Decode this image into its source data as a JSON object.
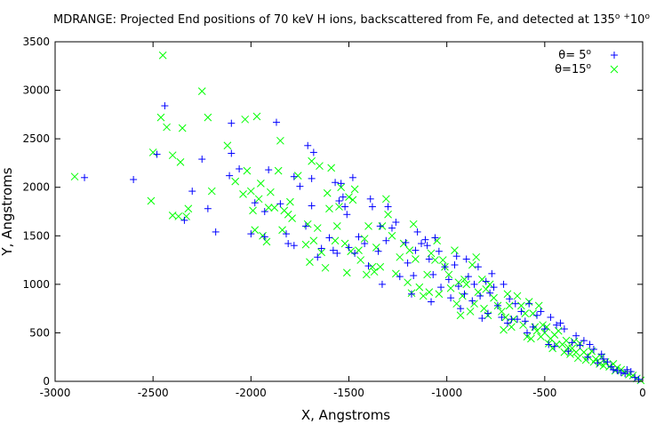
{
  "chart_data": {
    "type": "scatter",
    "title_main": "MDRANGE: Projected End positions of 70 keV H ions, backscattered from Fe, and detected at 135",
    "title_sup1": "o",
    "title_pm": "+",
    "title_10": "10",
    "title_sup2": "o",
    "xlabel": "X, Angstroms",
    "ylabel": "Y, Angstroms",
    "xlim": [
      -3000,
      0
    ],
    "ylim": [
      0,
      3500
    ],
    "xticks": [
      "-3000",
      "-2500",
      "-2000",
      "-1500",
      "-1000",
      "-500",
      "0"
    ],
    "yticks": [
      "0",
      "500",
      "1000",
      "1500",
      "2000",
      "2500",
      "3000",
      "3500"
    ],
    "grid": false,
    "legend_position": "top-right",
    "series": [
      {
        "name": "θ= 5",
        "name_sup": "o",
        "marker": "plus",
        "color": "#0000ff",
        "points": [
          [
            -2850,
            2100
          ],
          [
            -2600,
            2080
          ],
          [
            -2480,
            2340
          ],
          [
            -2440,
            2840
          ],
          [
            -2340,
            1660
          ],
          [
            -2300,
            1960
          ],
          [
            -2250,
            2290
          ],
          [
            -2220,
            1780
          ],
          [
            -2180,
            1540
          ],
          [
            -2110,
            2120
          ],
          [
            -2100,
            2350
          ],
          [
            -2100,
            2660
          ],
          [
            -2060,
            2190
          ],
          [
            -2000,
            1520
          ],
          [
            -1980,
            1840
          ],
          [
            -1930,
            1490
          ],
          [
            -1930,
            1750
          ],
          [
            -1910,
            2180
          ],
          [
            -1870,
            2670
          ],
          [
            -1850,
            1830
          ],
          [
            -1820,
            1520
          ],
          [
            -1810,
            1420
          ],
          [
            -1780,
            1400
          ],
          [
            -1780,
            2110
          ],
          [
            -1750,
            2010
          ],
          [
            -1720,
            1600
          ],
          [
            -1710,
            2430
          ],
          [
            -1690,
            1810
          ],
          [
            -1690,
            2090
          ],
          [
            -1680,
            2360
          ],
          [
            -1660,
            1280
          ],
          [
            -1640,
            1370
          ],
          [
            -1600,
            1480
          ],
          [
            -1580,
            1350
          ],
          [
            -1570,
            2050
          ],
          [
            -1560,
            1320
          ],
          [
            -1550,
            1860
          ],
          [
            -1540,
            2040
          ],
          [
            -1530,
            1900
          ],
          [
            -1520,
            1800
          ],
          [
            -1510,
            1720
          ],
          [
            -1500,
            1380
          ],
          [
            -1480,
            2100
          ],
          [
            -1470,
            1320
          ],
          [
            -1450,
            1490
          ],
          [
            -1420,
            1420
          ],
          [
            -1400,
            1190
          ],
          [
            -1390,
            1880
          ],
          [
            -1380,
            1800
          ],
          [
            -1350,
            1340
          ],
          [
            -1340,
            1600
          ],
          [
            -1330,
            1000
          ],
          [
            -1310,
            1450
          ],
          [
            -1300,
            1800
          ],
          [
            -1280,
            1580
          ],
          [
            -1260,
            1640
          ],
          [
            -1240,
            1080
          ],
          [
            -1210,
            1430
          ],
          [
            -1200,
            1220
          ],
          [
            -1180,
            900
          ],
          [
            -1170,
            1090
          ],
          [
            -1160,
            1350
          ],
          [
            -1150,
            1540
          ],
          [
            -1130,
            1420
          ],
          [
            -1110,
            1460
          ],
          [
            -1100,
            1400
          ],
          [
            -1090,
            1260
          ],
          [
            -1080,
            820
          ],
          [
            -1070,
            1100
          ],
          [
            -1060,
            1480
          ],
          [
            -1040,
            1340
          ],
          [
            -1030,
            970
          ],
          [
            -1010,
            1180
          ],
          [
            -990,
            1050
          ],
          [
            -980,
            860
          ],
          [
            -960,
            1200
          ],
          [
            -950,
            1290
          ],
          [
            -940,
            980
          ],
          [
            -930,
            750
          ],
          [
            -910,
            900
          ],
          [
            -900,
            1260
          ],
          [
            -890,
            1080
          ],
          [
            -870,
            830
          ],
          [
            -860,
            1000
          ],
          [
            -840,
            1180
          ],
          [
            -830,
            880
          ],
          [
            -820,
            650
          ],
          [
            -800,
            1030
          ],
          [
            -790,
            700
          ],
          [
            -780,
            910
          ],
          [
            -770,
            1110
          ],
          [
            -760,
            970
          ],
          [
            -740,
            780
          ],
          [
            -720,
            660
          ],
          [
            -710,
            1000
          ],
          [
            -690,
            600
          ],
          [
            -680,
            850
          ],
          [
            -670,
            640
          ],
          [
            -650,
            800
          ],
          [
            -640,
            640
          ],
          [
            -620,
            720
          ],
          [
            -600,
            620
          ],
          [
            -590,
            500
          ],
          [
            -580,
            800
          ],
          [
            -560,
            560
          ],
          [
            -540,
            680
          ],
          [
            -520,
            720
          ],
          [
            -500,
            540
          ],
          [
            -480,
            380
          ],
          [
            -470,
            660
          ],
          [
            -450,
            360
          ],
          [
            -440,
            580
          ],
          [
            -420,
            600
          ],
          [
            -400,
            540
          ],
          [
            -380,
            310
          ],
          [
            -360,
            400
          ],
          [
            -340,
            470
          ],
          [
            -320,
            370
          ],
          [
            -300,
            420
          ],
          [
            -280,
            250
          ],
          [
            -270,
            380
          ],
          [
            -250,
            330
          ],
          [
            -230,
            190
          ],
          [
            -210,
            280
          ],
          [
            -200,
            230
          ],
          [
            -180,
            200
          ],
          [
            -160,
            150
          ],
          [
            -150,
            120
          ],
          [
            -130,
            110
          ],
          [
            -110,
            90
          ],
          [
            -90,
            80
          ],
          [
            -80,
            120
          ],
          [
            -60,
            100
          ],
          [
            -40,
            40
          ],
          [
            -20,
            20
          ]
        ]
      },
      {
        "name": "θ=15",
        "name_sup": "o",
        "marker": "cross",
        "color": "#00ff00",
        "points": [
          [
            -2900,
            2110
          ],
          [
            -2510,
            1860
          ],
          [
            -2500,
            2360
          ],
          [
            -2460,
            2720
          ],
          [
            -2450,
            3360
          ],
          [
            -2430,
            2620
          ],
          [
            -2400,
            1710
          ],
          [
            -2400,
            2330
          ],
          [
            -2370,
            1700
          ],
          [
            -2360,
            2260
          ],
          [
            -2350,
            2610
          ],
          [
            -2330,
            1700
          ],
          [
            -2320,
            1780
          ],
          [
            -2250,
            2990
          ],
          [
            -2220,
            2720
          ],
          [
            -2200,
            1960
          ],
          [
            -2120,
            2430
          ],
          [
            -2080,
            2060
          ],
          [
            -2040,
            1930
          ],
          [
            -2030,
            2700
          ],
          [
            -2020,
            2170
          ],
          [
            -2000,
            1960
          ],
          [
            -1990,
            1760
          ],
          [
            -1980,
            1560
          ],
          [
            -1970,
            2730
          ],
          [
            -1960,
            1880
          ],
          [
            -1950,
            2040
          ],
          [
            -1940,
            1500
          ],
          [
            -1920,
            1440
          ],
          [
            -1910,
            1790
          ],
          [
            -1900,
            1950
          ],
          [
            -1880,
            1790
          ],
          [
            -1860,
            2170
          ],
          [
            -1850,
            2480
          ],
          [
            -1840,
            1560
          ],
          [
            -1830,
            1760
          ],
          [
            -1810,
            1720
          ],
          [
            -1800,
            1850
          ],
          [
            -1790,
            1680
          ],
          [
            -1760,
            2120
          ],
          [
            -1720,
            1410
          ],
          [
            -1710,
            1620
          ],
          [
            -1700,
            1230
          ],
          [
            -1690,
            2270
          ],
          [
            -1680,
            1450
          ],
          [
            -1660,
            1580
          ],
          [
            -1650,
            2220
          ],
          [
            -1640,
            1330
          ],
          [
            -1620,
            1170
          ],
          [
            -1610,
            1940
          ],
          [
            -1600,
            1780
          ],
          [
            -1590,
            2200
          ],
          [
            -1570,
            1450
          ],
          [
            -1560,
            1600
          ],
          [
            -1550,
            1800
          ],
          [
            -1540,
            2000
          ],
          [
            -1520,
            1420
          ],
          [
            -1510,
            1120
          ],
          [
            -1500,
            1900
          ],
          [
            -1490,
            1340
          ],
          [
            -1480,
            1870
          ],
          [
            -1470,
            1980
          ],
          [
            -1450,
            1350
          ],
          [
            -1440,
            1250
          ],
          [
            -1420,
            1470
          ],
          [
            -1410,
            1100
          ],
          [
            -1400,
            1600
          ],
          [
            -1380,
            1180
          ],
          [
            -1370,
            1130
          ],
          [
            -1360,
            1380
          ],
          [
            -1340,
            1180
          ],
          [
            -1330,
            1600
          ],
          [
            -1310,
            1880
          ],
          [
            -1300,
            1720
          ],
          [
            -1280,
            1500
          ],
          [
            -1260,
            1110
          ],
          [
            -1240,
            1280
          ],
          [
            -1220,
            1420
          ],
          [
            -1200,
            1020
          ],
          [
            -1190,
            1350
          ],
          [
            -1180,
            910
          ],
          [
            -1170,
            1620
          ],
          [
            -1160,
            1260
          ],
          [
            -1140,
            970
          ],
          [
            -1120,
            880
          ],
          [
            -1100,
            1100
          ],
          [
            -1090,
            920
          ],
          [
            -1080,
            1320
          ],
          [
            -1060,
            1250
          ],
          [
            -1050,
            1450
          ],
          [
            -1040,
            900
          ],
          [
            -1020,
            1250
          ],
          [
            -1010,
            1180
          ],
          [
            -990,
            1100
          ],
          [
            -980,
            960
          ],
          [
            -960,
            1350
          ],
          [
            -950,
            800
          ],
          [
            -940,
            1020
          ],
          [
            -930,
            680
          ],
          [
            -920,
            880
          ],
          [
            -910,
            1050
          ],
          [
            -900,
            1000
          ],
          [
            -880,
            720
          ],
          [
            -870,
            1200
          ],
          [
            -860,
            800
          ],
          [
            -850,
            1280
          ],
          [
            -840,
            920
          ],
          [
            -820,
            1050
          ],
          [
            -810,
            750
          ],
          [
            -800,
            950
          ],
          [
            -790,
            680
          ],
          [
            -780,
            1000
          ],
          [
            -760,
            860
          ],
          [
            -740,
            780
          ],
          [
            -720,
            720
          ],
          [
            -710,
            530
          ],
          [
            -700,
            660
          ],
          [
            -690,
            900
          ],
          [
            -680,
            780
          ],
          [
            -670,
            560
          ],
          [
            -660,
            640
          ],
          [
            -640,
            880
          ],
          [
            -620,
            780
          ],
          [
            -610,
            580
          ],
          [
            -600,
            700
          ],
          [
            -590,
            460
          ],
          [
            -580,
            820
          ],
          [
            -570,
            440
          ],
          [
            -560,
            700
          ],
          [
            -550,
            560
          ],
          [
            -540,
            520
          ],
          [
            -530,
            780
          ],
          [
            -520,
            460
          ],
          [
            -510,
            580
          ],
          [
            -500,
            500
          ],
          [
            -490,
            560
          ],
          [
            -480,
            390
          ],
          [
            -470,
            440
          ],
          [
            -460,
            340
          ],
          [
            -450,
            480
          ],
          [
            -440,
            380
          ],
          [
            -430,
            520
          ],
          [
            -410,
            380
          ],
          [
            -400,
            300
          ],
          [
            -390,
            420
          ],
          [
            -380,
            350
          ],
          [
            -370,
            280
          ],
          [
            -360,
            340
          ],
          [
            -350,
            410
          ],
          [
            -340,
            300
          ],
          [
            -330,
            240
          ],
          [
            -320,
            390
          ],
          [
            -300,
            300
          ],
          [
            -290,
            220
          ],
          [
            -280,
            260
          ],
          [
            -260,
            310
          ],
          [
            -250,
            200
          ],
          [
            -240,
            230
          ],
          [
            -220,
            180
          ],
          [
            -210,
            250
          ],
          [
            -200,
            160
          ],
          [
            -190,
            200
          ],
          [
            -170,
            150
          ],
          [
            -150,
            180
          ],
          [
            -140,
            110
          ],
          [
            -130,
            140
          ],
          [
            -110,
            120
          ],
          [
            -90,
            90
          ],
          [
            -70,
            70
          ],
          [
            -50,
            60
          ],
          [
            -30,
            30
          ],
          [
            -10,
            10
          ]
        ]
      }
    ]
  }
}
